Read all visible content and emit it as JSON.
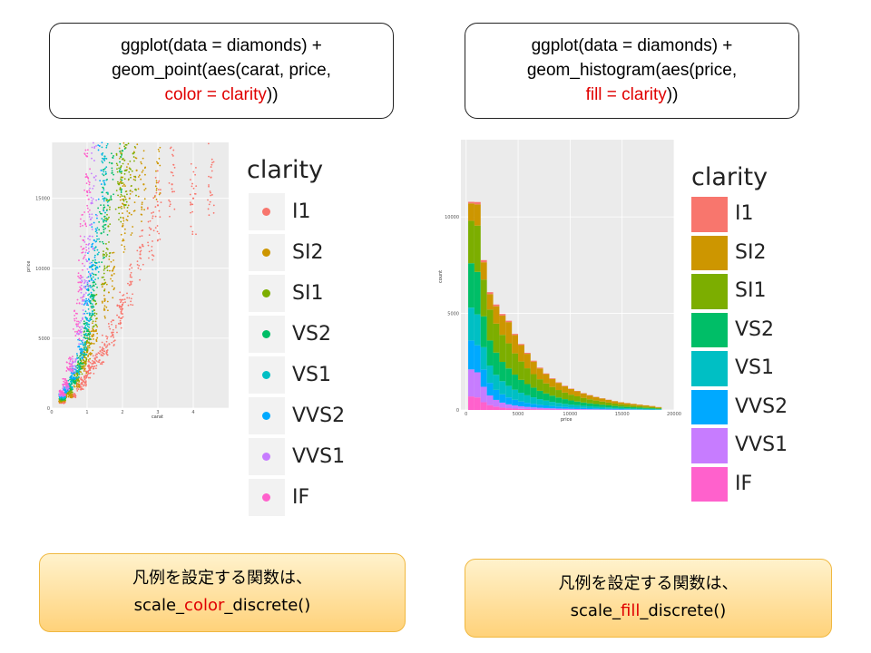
{
  "left": {
    "code": {
      "line1": "ggplot(data = diamonds) +",
      "line2": "geom_point(aes(carat, price,",
      "line3_red": "color = clarity",
      "line3_tail": "))"
    },
    "note": {
      "line1": "凡例を設定する関数は、",
      "pre": "scale_",
      "red": "color",
      "post": "_discrete()"
    }
  },
  "right": {
    "code": {
      "line1": "ggplot(data = diamonds) +",
      "line2": "geom_histogram(aes(price,",
      "line3_red": "fill = clarity",
      "line3_tail": "))"
    },
    "note": {
      "line1": "凡例を設定する関数は、",
      "pre": "scale_",
      "red": "fill",
      "post": "_discrete()"
    }
  },
  "legend_title": "clarity",
  "clarity_levels": [
    "I1",
    "SI2",
    "SI1",
    "VS2",
    "VS1",
    "VVS2",
    "VVS1",
    "IF"
  ],
  "colors": [
    "#f8766d",
    "#cd9600",
    "#7cae00",
    "#00be67",
    "#00bfc4",
    "#00a9ff",
    "#c77cff",
    "#ff61cc"
  ],
  "chart_data": [
    {
      "type": "scatter",
      "xlabel": "carat",
      "ylabel": "price",
      "x_ticks": [
        0,
        1,
        2,
        3,
        4
      ],
      "y_ticks": [
        0,
        5000,
        10000,
        15000
      ],
      "xlim": [
        0,
        5
      ],
      "ylim": [
        0,
        19000
      ],
      "legend": "right",
      "series": [
        {
          "name": "I1",
          "points": [
            [
              0.3,
              400
            ],
            [
              0.6,
              900
            ],
            [
              0.8,
              1500
            ],
            [
              0.9,
              1900
            ],
            [
              1.0,
              2600
            ],
            [
              1.1,
              2900
            ],
            [
              1.2,
              3300
            ],
            [
              1.4,
              3800
            ],
            [
              1.5,
              4500
            ],
            [
              1.7,
              5400
            ],
            [
              1.9,
              6500
            ],
            [
              2.0,
              7400
            ],
            [
              2.2,
              8800
            ],
            [
              2.5,
              11000
            ],
            [
              2.8,
              12800
            ],
            [
              3.0,
              14500
            ],
            [
              3.4,
              16000
            ],
            [
              4.0,
              15000
            ],
            [
              4.5,
              16500
            ]
          ]
        },
        {
          "name": "SI2",
          "points": [
            [
              0.3,
              500
            ],
            [
              0.5,
              900
            ],
            [
              0.7,
              1800
            ],
            [
              0.9,
              3000
            ],
            [
              1.0,
              4000
            ],
            [
              1.1,
              4600
            ],
            [
              1.2,
              5500
            ],
            [
              1.5,
              7800
            ],
            [
              1.7,
              9500
            ],
            [
              2.0,
              13000
            ],
            [
              2.0,
              16500
            ],
            [
              2.2,
              15000
            ],
            [
              2.4,
              17000
            ],
            [
              2.6,
              16000
            ],
            [
              3.0,
              17500
            ]
          ]
        },
        {
          "name": "SI1",
          "points": [
            [
              0.3,
              600
            ],
            [
              0.5,
              1200
            ],
            [
              0.7,
              2200
            ],
            [
              0.8,
              2800
            ],
            [
              0.9,
              3800
            ],
            [
              1.0,
              4800
            ],
            [
              1.2,
              7000
            ],
            [
              1.5,
              10000
            ],
            [
              1.6,
              13000
            ],
            [
              1.9,
              16000
            ],
            [
              2.0,
              17800
            ],
            [
              2.1,
              17000
            ],
            [
              2.3,
              18200
            ]
          ]
        },
        {
          "name": "VS2",
          "points": [
            [
              0.3,
              700
            ],
            [
              0.5,
              1500
            ],
            [
              0.6,
              2000
            ],
            [
              0.8,
              3200
            ],
            [
              1.0,
              5500
            ],
            [
              1.1,
              7500
            ],
            [
              1.2,
              9000
            ],
            [
              1.4,
              12500
            ],
            [
              1.5,
              15000
            ],
            [
              1.7,
              17500
            ],
            [
              2.0,
              18400
            ]
          ]
        },
        {
          "name": "VS1",
          "points": [
            [
              0.3,
              800
            ],
            [
              0.5,
              1700
            ],
            [
              0.7,
              2600
            ],
            [
              0.9,
              4500
            ],
            [
              1.0,
              6000
            ],
            [
              1.1,
              8000
            ],
            [
              1.3,
              11000
            ],
            [
              1.5,
              16000
            ],
            [
              1.5,
              18000
            ]
          ]
        },
        {
          "name": "VVS2",
          "points": [
            [
              0.3,
              900
            ],
            [
              0.4,
              1300
            ],
            [
              0.6,
              2500
            ],
            [
              0.8,
              4200
            ],
            [
              1.0,
              7500
            ],
            [
              1.1,
              9500
            ],
            [
              1.2,
              12000
            ],
            [
              1.4,
              17000
            ]
          ]
        },
        {
          "name": "VVS1",
          "points": [
            [
              0.3,
              1000
            ],
            [
              0.4,
              1500
            ],
            [
              0.6,
              3000
            ],
            [
              0.8,
              5500
            ],
            [
              0.9,
              8000
            ],
            [
              1.0,
              10500
            ],
            [
              1.1,
              13500
            ],
            [
              1.2,
              16500
            ]
          ]
        },
        {
          "name": "IF",
          "points": [
            [
              0.3,
              1100
            ],
            [
              0.4,
              1800
            ],
            [
              0.5,
              3200
            ],
            [
              0.7,
              6000
            ],
            [
              0.8,
              9000
            ],
            [
              0.9,
              12000
            ],
            [
              1.0,
              15500
            ],
            [
              1.0,
              18000
            ]
          ]
        }
      ]
    },
    {
      "type": "bar",
      "stacked": true,
      "xlabel": "price",
      "ylabel": "count",
      "x_ticks": [
        0,
        5000,
        10000,
        15000,
        20000
      ],
      "y_ticks": [
        0,
        5000,
        10000
      ],
      "xlim": [
        -500,
        20000
      ],
      "ylim": [
        0,
        14000
      ],
      "legend": "right",
      "categories": [
        500,
        1100,
        1700,
        2300,
        2900,
        3500,
        4100,
        4700,
        5300,
        5900,
        6500,
        7100,
        7700,
        8300,
        8900,
        9500,
        10100,
        10700,
        11300,
        11900,
        12500,
        13100,
        13700,
        14300,
        14900,
        15500,
        16100,
        16700,
        17300,
        17900,
        18500
      ],
      "series": [
        {
          "name": "I1",
          "values": [
            80,
            120,
            110,
            100,
            90,
            80,
            70,
            60,
            55,
            50,
            45,
            40,
            36,
            32,
            28,
            25,
            22,
            20,
            18,
            16,
            14,
            12,
            10,
            9,
            8,
            7,
            6,
            5,
            4,
            3,
            2
          ]
        },
        {
          "name": "SI2",
          "values": [
            900,
            1100,
            900,
            800,
            900,
            1000,
            1100,
            950,
            850,
            750,
            650,
            560,
            480,
            420,
            370,
            330,
            290,
            260,
            230,
            200,
            180,
            160,
            140,
            120,
            105,
            95,
            85,
            75,
            65,
            55,
            40
          ]
        },
        {
          "name": "SI1",
          "values": [
            2200,
            2400,
            1900,
            1600,
            1500,
            1400,
            1300,
            1100,
            950,
            820,
            700,
            600,
            520,
            450,
            390,
            340,
            300,
            270,
            240,
            210,
            185,
            165,
            145,
            125,
            110,
            98,
            86,
            76,
            66,
            56,
            40
          ]
        },
        {
          "name": "VS2",
          "values": [
            2300,
            2200,
            1600,
            1300,
            1150,
            1000,
            900,
            780,
            670,
            580,
            500,
            430,
            370,
            320,
            280,
            245,
            215,
            190,
            170,
            150,
            135,
            120,
            105,
            92,
            80,
            70,
            62,
            55,
            48,
            40,
            30
          ]
        },
        {
          "name": "VS1",
          "values": [
            1700,
            1600,
            1150,
            900,
            780,
            680,
            600,
            520,
            450,
            390,
            340,
            290,
            250,
            215,
            185,
            160,
            140,
            125,
            110,
            98,
            86,
            76,
            67,
            58,
            51,
            45,
            40,
            35,
            30,
            26,
            20
          ]
        },
        {
          "name": "VVS2",
          "values": [
            1500,
            1400,
            900,
            650,
            520,
            430,
            360,
            300,
            250,
            210,
            180,
            155,
            135,
            118,
            103,
            90,
            80,
            70,
            62,
            55,
            48,
            42,
            37,
            32,
            28,
            25,
            22,
            19,
            16,
            14,
            10
          ]
        },
        {
          "name": "VVS1",
          "values": [
            1400,
            1300,
            800,
            500,
            350,
            260,
            200,
            160,
            130,
            110,
            95,
            82,
            70,
            60,
            52,
            45,
            40,
            35,
            31,
            27,
            24,
            21,
            18,
            16,
            14,
            12,
            10,
            9,
            8,
            7,
            5
          ]
        },
        {
          "name": "IF",
          "values": [
            700,
            650,
            400,
            250,
            170,
            120,
            90,
            70,
            58,
            48,
            40,
            34,
            29,
            25,
            22,
            19,
            17,
            15,
            13,
            11,
            10,
            9,
            8,
            7,
            6,
            5,
            4,
            4,
            3,
            3,
            2
          ]
        }
      ]
    }
  ]
}
